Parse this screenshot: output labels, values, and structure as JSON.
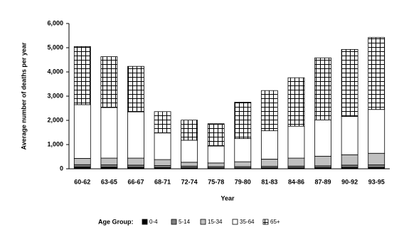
{
  "chart_data": {
    "type": "stacked_bar",
    "y_label": "Average number of deaths per year",
    "x_label": "Year",
    "legend_title": "Age Group:",
    "categories": [
      "60-62",
      "63-65",
      "66-67",
      "68-71",
      "72-74",
      "75-78",
      "79-80",
      "81-83",
      "84-86",
      "87-89",
      "90-92",
      "93-95"
    ],
    "series": [
      {
        "name": "0-4",
        "color": "#000000",
        "values": [
          80,
          70,
          60,
          50,
          40,
          30,
          30,
          40,
          40,
          50,
          60,
          60
        ]
      },
      {
        "name": "5-14",
        "color": "#808080",
        "values": [
          90,
          90,
          90,
          80,
          70,
          60,
          60,
          60,
          70,
          70,
          90,
          100
        ]
      },
      {
        "name": "15-34",
        "color": "#c0c0c0",
        "values": [
          260,
          280,
          290,
          250,
          160,
          150,
          200,
          300,
          330,
          400,
          430,
          480
        ]
      },
      {
        "name": "35-64",
        "color": "#ffffff",
        "values": [
          2220,
          2090,
          1910,
          1100,
          910,
          700,
          960,
          1170,
          1320,
          1500,
          1580,
          1810
        ]
      },
      {
        "name": "65+",
        "color": "#ffffff",
        "pattern": "crosshatch",
        "values": [
          2400,
          2100,
          1880,
          880,
          830,
          920,
          1500,
          1660,
          2000,
          2560,
          2770,
          2970
        ]
      }
    ],
    "ylim": [
      0,
      6000
    ],
    "yticks": [
      0,
      {
        "value": 1000,
        "label": "1,000"
      },
      {
        "value": 2000,
        "label": "2,000"
      },
      {
        "value": 3000,
        "label": "3,000"
      },
      {
        "value": 4000,
        "label": "4,000"
      },
      {
        "value": 5000,
        "label": "5,000"
      },
      {
        "value": 6000,
        "label": "6,000"
      }
    ]
  }
}
